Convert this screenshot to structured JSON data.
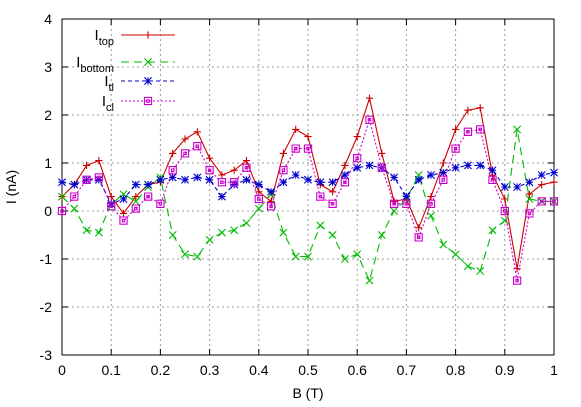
{
  "chart_data": {
    "type": "line",
    "xlabel": "B (T)",
    "ylabel": "I (nA)",
    "xlim": [
      0,
      1
    ],
    "ylim": [
      -3,
      4
    ],
    "xticks": [
      "0",
      "0.1",
      "0.2",
      "0.3",
      "0.4",
      "0.5",
      "0.6",
      "0.7",
      "0.8",
      "0.9",
      "1"
    ],
    "yticks": [
      "-3",
      "-2",
      "-1",
      "0",
      "1",
      "2",
      "3",
      "4"
    ],
    "grid": true,
    "legend_position": "top-right",
    "x": [
      0,
      0.025,
      0.05,
      0.075,
      0.1,
      0.125,
      0.15,
      0.175,
      0.2,
      0.225,
      0.25,
      0.275,
      0.3,
      0.325,
      0.35,
      0.375,
      0.4,
      0.425,
      0.45,
      0.475,
      0.5,
      0.525,
      0.55,
      0.575,
      0.6,
      0.625,
      0.65,
      0.675,
      0.7,
      0.725,
      0.75,
      0.775,
      0.8,
      0.825,
      0.85,
      0.875,
      0.9,
      0.925,
      0.95,
      0.975,
      1
    ],
    "series": [
      {
        "name_main": "I",
        "name_sub": "top",
        "color": "#cc0000",
        "marker": "plus",
        "dash": "solid",
        "values": [
          0.3,
          0.55,
          0.95,
          1.05,
          0.3,
          -0.05,
          0.3,
          0.55,
          0.6,
          1.2,
          1.5,
          1.65,
          1.1,
          0.75,
          0.85,
          1.05,
          0.4,
          0.2,
          1.2,
          1.7,
          1.55,
          0.55,
          0.4,
          0.95,
          1.55,
          2.35,
          1.2,
          0.2,
          0.25,
          -0.35,
          0.3,
          1.0,
          1.7,
          2.1,
          2.15,
          0.75,
          0.25,
          -1.2,
          0.35,
          0.55,
          0.6
        ]
      },
      {
        "name_main": "I",
        "name_sub": "bottom",
        "color": "#00bb00",
        "marker": "x",
        "dash": "8,5",
        "values": [
          0.3,
          0.05,
          -0.4,
          -0.45,
          0.15,
          0.35,
          0.2,
          0.5,
          0.7,
          -0.5,
          -0.9,
          -0.95,
          -0.6,
          -0.45,
          -0.4,
          -0.25,
          0.05,
          0.35,
          -0.45,
          -0.95,
          -0.95,
          -0.3,
          -0.5,
          -1.0,
          -0.9,
          -1.45,
          -0.5,
          0.0,
          0.25,
          0.75,
          -0.1,
          -0.7,
          -0.9,
          -1.15,
          -1.25,
          -0.4,
          -0.2,
          1.7,
          0.25,
          0.2,
          0.2
        ]
      },
      {
        "name_main": "I",
        "name_sub": "tl",
        "color": "#0000cc",
        "marker": "star",
        "dash": "4,3",
        "values": [
          0.6,
          0.55,
          0.65,
          0.65,
          0.15,
          0.25,
          0.55,
          0.55,
          0.65,
          0.7,
          0.65,
          0.7,
          0.65,
          0.3,
          0.55,
          0.65,
          0.55,
          0.4,
          0.6,
          0.75,
          0.65,
          0.6,
          0.6,
          0.75,
          0.9,
          0.95,
          0.9,
          0.7,
          0.3,
          0.65,
          0.75,
          0.8,
          0.9,
          0.95,
          0.95,
          0.85,
          0.5,
          0.5,
          0.6,
          0.75,
          0.8
        ]
      },
      {
        "name_main": "I",
        "name_sub": "cl",
        "color": "#cc00cc",
        "marker": "box",
        "dash": "2,2",
        "values": [
          0.0,
          0.3,
          0.65,
          0.7,
          0.1,
          -0.2,
          0.05,
          0.3,
          0.15,
          0.85,
          1.2,
          1.35,
          0.85,
          0.6,
          0.6,
          0.9,
          0.25,
          0.1,
          0.85,
          1.3,
          1.3,
          0.3,
          0.15,
          0.6,
          1.1,
          1.9,
          0.9,
          0.15,
          0.15,
          -0.55,
          0.15,
          0.65,
          1.3,
          1.65,
          1.7,
          0.65,
          0.0,
          -1.45,
          -0.05,
          0.2,
          0.2
        ]
      }
    ]
  }
}
